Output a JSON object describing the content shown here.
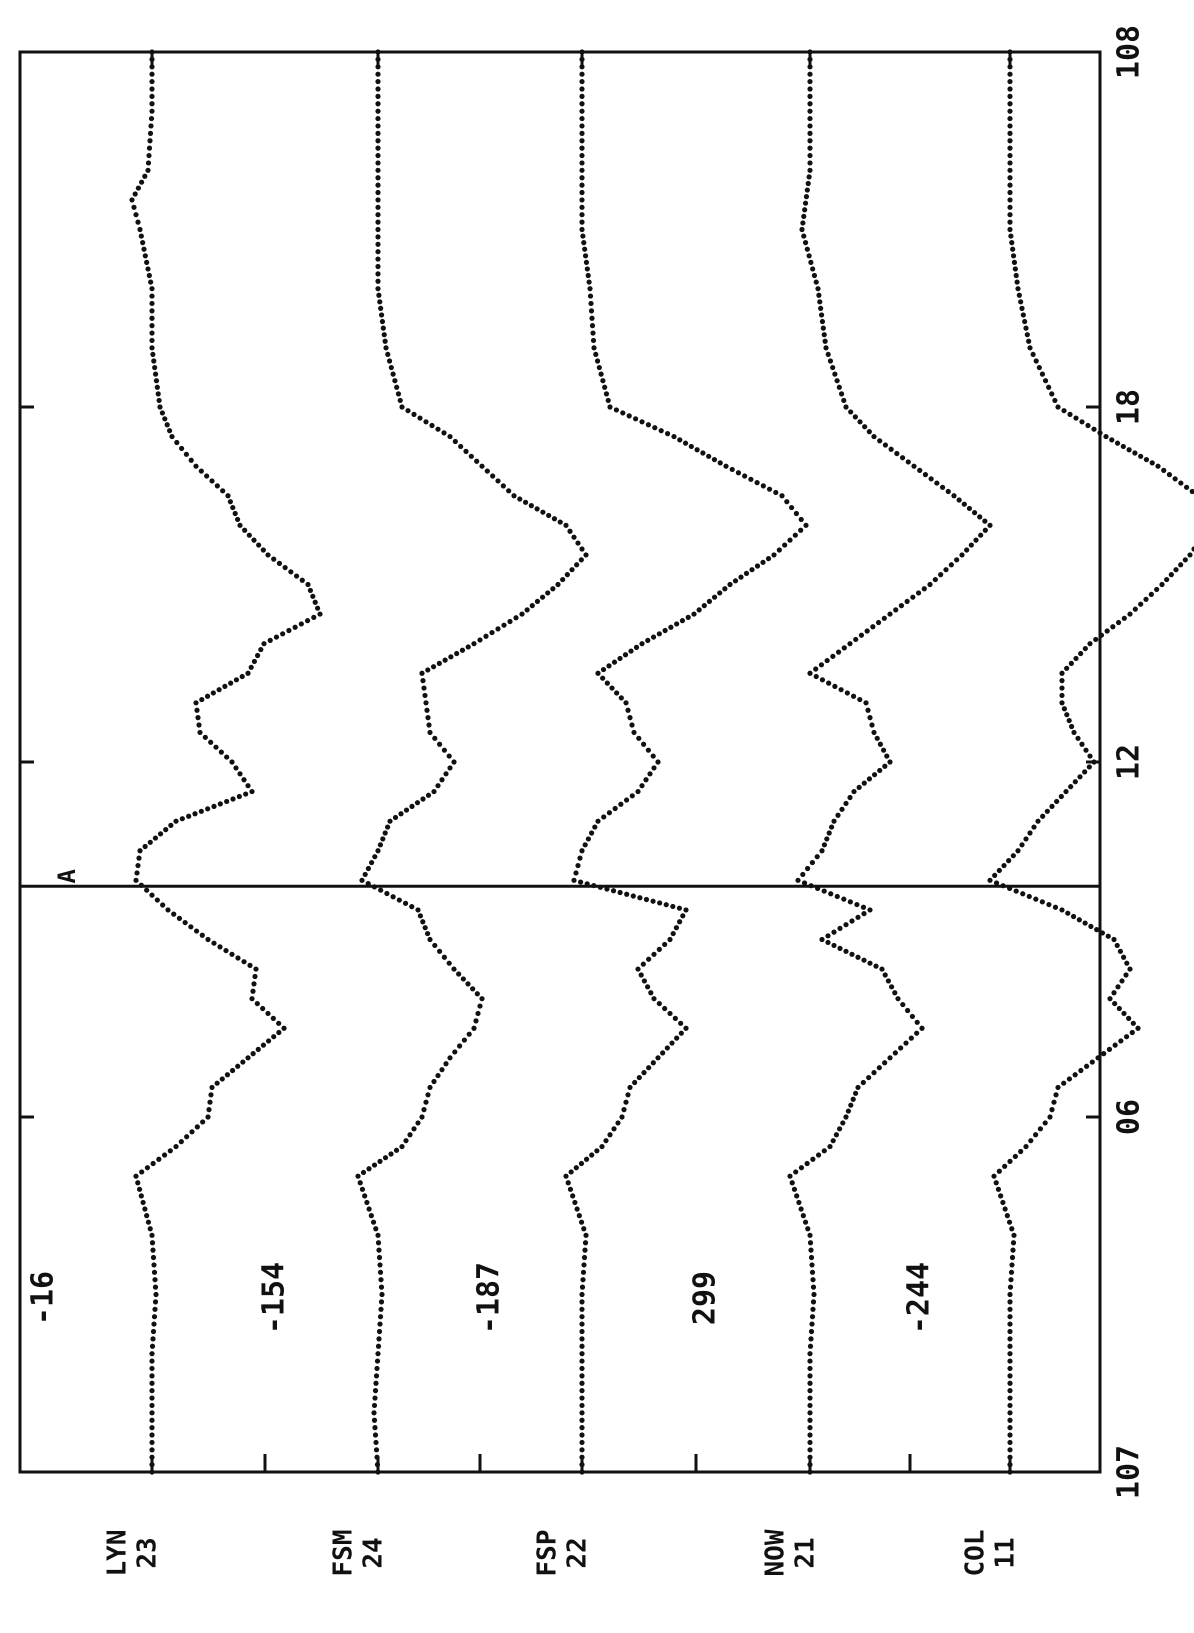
{
  "chart_data": {
    "type": "scatter",
    "orientation": "rotated-90-counterclockwise",
    "x_ticks": [
      "107",
      "06",
      "12",
      "18",
      "108"
    ],
    "x_tick_values": [
      0,
      6,
      12,
      18,
      24
    ],
    "xlim": [
      0,
      24
    ],
    "marker": {
      "label": "A",
      "x": 9.9
    },
    "stations": [
      {
        "name": "LYN",
        "number": "23",
        "offset": "-16"
      },
      {
        "name": "FSM",
        "number": "24",
        "offset": "-154"
      },
      {
        "name": "FSP",
        "number": "22",
        "offset": "-187"
      },
      {
        "name": "NOW",
        "number": "21",
        "offset": "299"
      },
      {
        "name": "COL",
        "number": "11",
        "offset": "-244"
      }
    ],
    "series": [
      {
        "name": "LYN",
        "x": [
          0,
          1,
          2,
          3,
          4,
          5,
          5.5,
          6,
          6.5,
          7,
          7.5,
          8,
          8.5,
          9,
          9.5,
          10,
          10.5,
          11,
          11.5,
          12,
          12.5,
          13,
          13.5,
          14,
          14.5,
          15,
          15.5,
          16,
          16.5,
          17,
          17.5,
          18,
          19,
          20,
          21,
          21.5,
          22,
          23,
          24
        ],
        "y": [
          0,
          0,
          0,
          0.1,
          0,
          -0.4,
          0.6,
          1.4,
          1.5,
          2.4,
          3.3,
          2.5,
          2.6,
          1.4,
          0.4,
          -0.4,
          -0.3,
          0.6,
          2.5,
          2.0,
          1.2,
          1.1,
          2.4,
          2.8,
          4.2,
          3.9,
          2.9,
          2.2,
          1.9,
          1.1,
          0.5,
          0.2,
          0,
          0,
          -0.3,
          -0.5,
          -0.1,
          0,
          0
        ]
      },
      {
        "name": "FSM",
        "x": [
          0,
          1,
          2,
          3,
          4,
          5,
          5.5,
          6,
          6.5,
          7,
          7.5,
          8,
          8.5,
          9,
          9.5,
          10,
          10.5,
          11,
          11.5,
          12,
          12.5,
          13,
          13.5,
          14,
          14.5,
          15,
          15.5,
          16,
          16.5,
          17,
          17.5,
          18,
          19,
          20,
          21,
          22,
          23,
          24
        ],
        "y": [
          0,
          -0.1,
          0,
          0.1,
          0,
          -0.5,
          0.6,
          1.1,
          1.3,
          1.8,
          2.4,
          2.6,
          1.9,
          1.3,
          1.0,
          -0.4,
          0,
          0.3,
          1.4,
          1.9,
          1.3,
          1.2,
          1.1,
          2.4,
          3.6,
          4.5,
          5.2,
          4.7,
          3.4,
          2.6,
          1.8,
          0.6,
          0.2,
          0,
          0,
          0,
          0,
          0
        ]
      },
      {
        "name": "FSP",
        "x": [
          0,
          1,
          2,
          3,
          4,
          5,
          5.5,
          6,
          6.5,
          7,
          7.5,
          8,
          8.5,
          9,
          9.5,
          10,
          10.5,
          11,
          11.5,
          12,
          12.5,
          13,
          13.5,
          14,
          14.5,
          15,
          15.5,
          16,
          16.5,
          17,
          17.5,
          18,
          19,
          20,
          21,
          22,
          23,
          24
        ],
        "y": [
          0,
          0,
          0,
          0,
          0.1,
          -0.4,
          0.5,
          1.0,
          1.2,
          1.9,
          2.6,
          1.8,
          1.4,
          2.2,
          2.6,
          -0.2,
          0,
          0.4,
          1.4,
          1.9,
          1.3,
          1.1,
          0.4,
          1.5,
          2.8,
          3.7,
          4.8,
          5.6,
          5.0,
          3.6,
          2.3,
          0.7,
          0.3,
          0.2,
          0,
          0,
          0,
          0
        ]
      },
      {
        "name": "NOW",
        "x": [
          0,
          1,
          2,
          3,
          4,
          5,
          5.5,
          6,
          6.5,
          7,
          7.5,
          8,
          8.5,
          9,
          9.5,
          10,
          10.5,
          11,
          11.5,
          12,
          12.5,
          13,
          13.5,
          14,
          14.5,
          15,
          15.5,
          16,
          16.5,
          17,
          17.5,
          18,
          19,
          20,
          21,
          22,
          23,
          24
        ],
        "y": [
          0,
          0,
          0,
          0.1,
          0,
          -0.5,
          0.5,
          0.9,
          1.2,
          2.0,
          2.8,
          2.2,
          1.8,
          0.3,
          1.5,
          -0.3,
          0.3,
          0.6,
          1.1,
          2.0,
          1.6,
          1.4,
          0,
          1.0,
          2.0,
          3.0,
          3.8,
          4.5,
          3.6,
          2.6,
          1.6,
          0.9,
          0.4,
          0.2,
          -0.2,
          0,
          0,
          0
        ]
      },
      {
        "name": "COL",
        "x": [
          0,
          1,
          2,
          3,
          4,
          5,
          5.5,
          6,
          6.5,
          7,
          7.5,
          8,
          8.5,
          9,
          9.5,
          10,
          10.5,
          11,
          11.5,
          12,
          12.5,
          13,
          13.5,
          14,
          14.5,
          15,
          15.5,
          16,
          16.5,
          17,
          17.5,
          18,
          19,
          20,
          21,
          22,
          23,
          24
        ],
        "y": [
          0,
          0,
          0,
          0,
          0.1,
          -0.4,
          0.4,
          1.0,
          1.2,
          2.2,
          3.2,
          2.5,
          3.0,
          2.6,
          1.3,
          -0.5,
          0.2,
          0.7,
          1.4,
          2.1,
          1.6,
          1.3,
          1.3,
          2.0,
          3.0,
          3.8,
          4.5,
          5.0,
          4.7,
          3.7,
          2.4,
          1.2,
          0.5,
          0.2,
          0,
          0,
          0,
          0
        ]
      }
    ]
  }
}
